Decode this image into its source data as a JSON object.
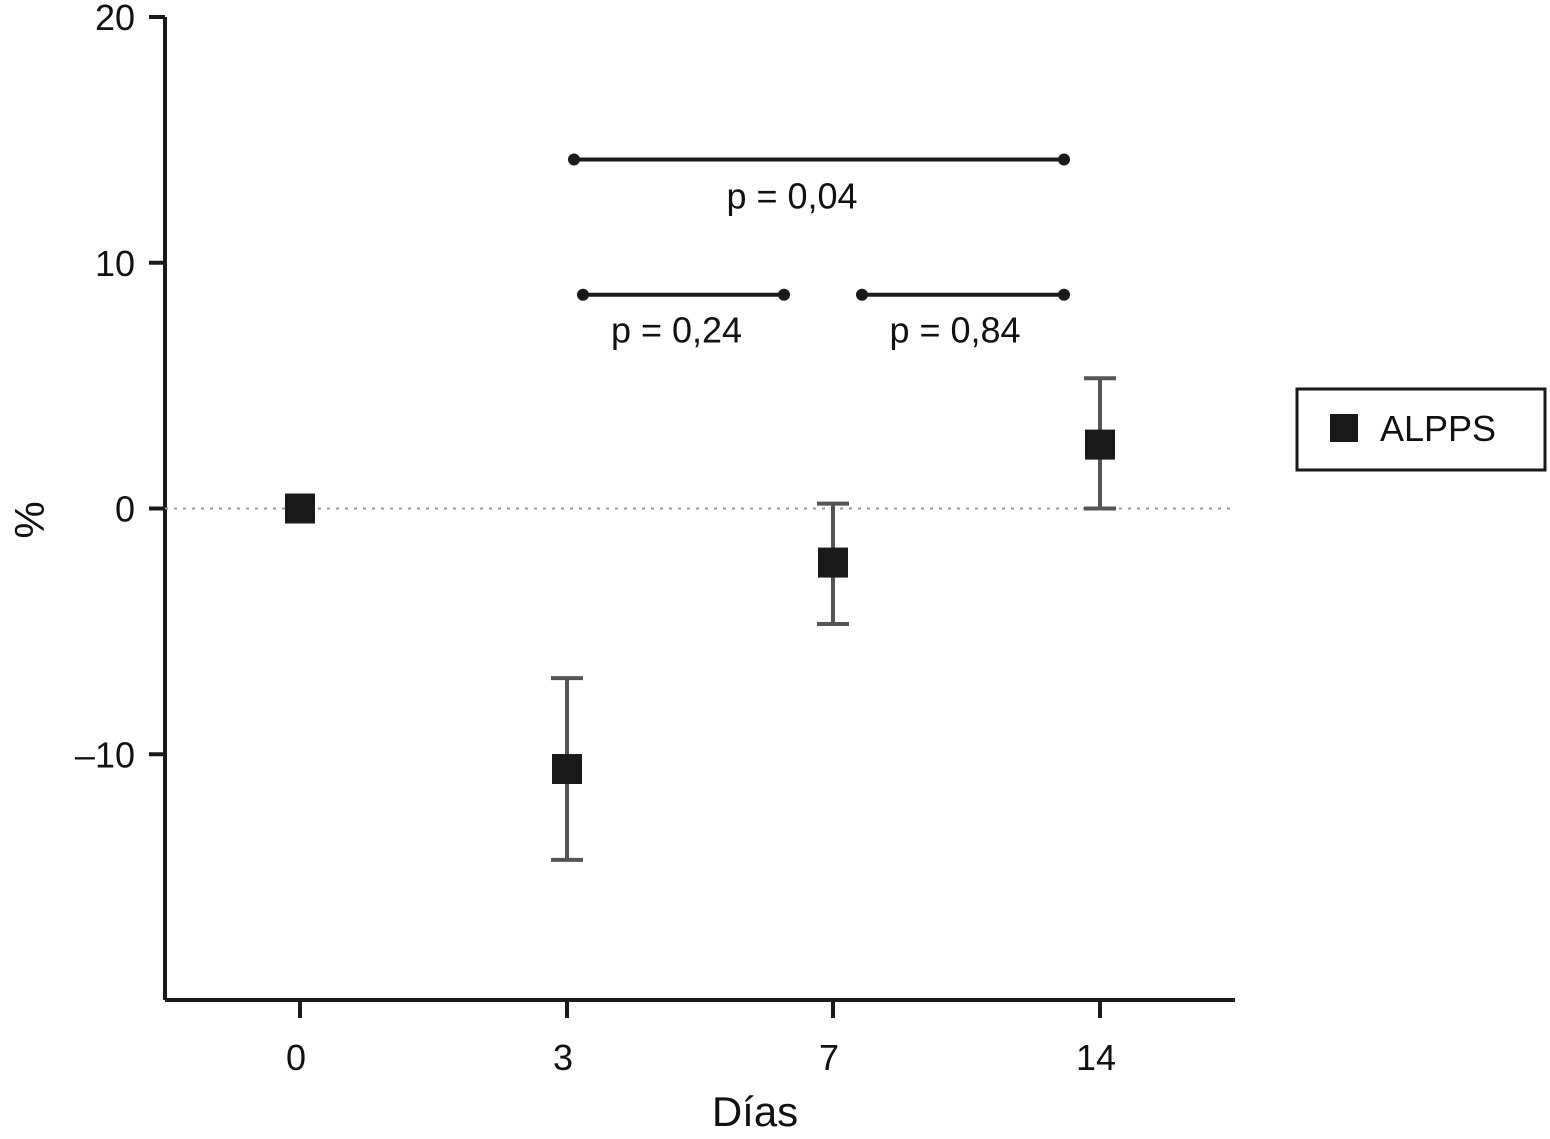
{
  "chart_data": {
    "type": "scatter",
    "xlabel": "Días",
    "ylabel": "%",
    "categories": [
      "0",
      "3",
      "7",
      "14"
    ],
    "ylim": [
      -20,
      20
    ],
    "yticks": [
      -10,
      0,
      10,
      20
    ],
    "ytick_labels": [
      "–10",
      "0",
      "10",
      "20"
    ],
    "reference_line": 0,
    "series": [
      {
        "name": "ALPPS",
        "values": [
          0,
          -10.6,
          -2.2,
          2.6
        ],
        "err_low": [
          0,
          -14.3,
          -4.7,
          0
        ],
        "err_high": [
          0,
          -6.9,
          0.2,
          5.3
        ],
        "color": "#1a1a1a",
        "marker": "square"
      }
    ],
    "comparisons": [
      {
        "from": "3",
        "to": "14",
        "y": 14.2,
        "label": "p = 0,04"
      },
      {
        "from": "3",
        "to": "7",
        "y": 8.7,
        "label": "p = 0,24"
      },
      {
        "from": "7",
        "to": "14",
        "y": 8.7,
        "label": "p = 0,84"
      }
    ],
    "legend": {
      "position": "right",
      "entries": [
        "ALPPS"
      ]
    },
    "grid": false
  }
}
